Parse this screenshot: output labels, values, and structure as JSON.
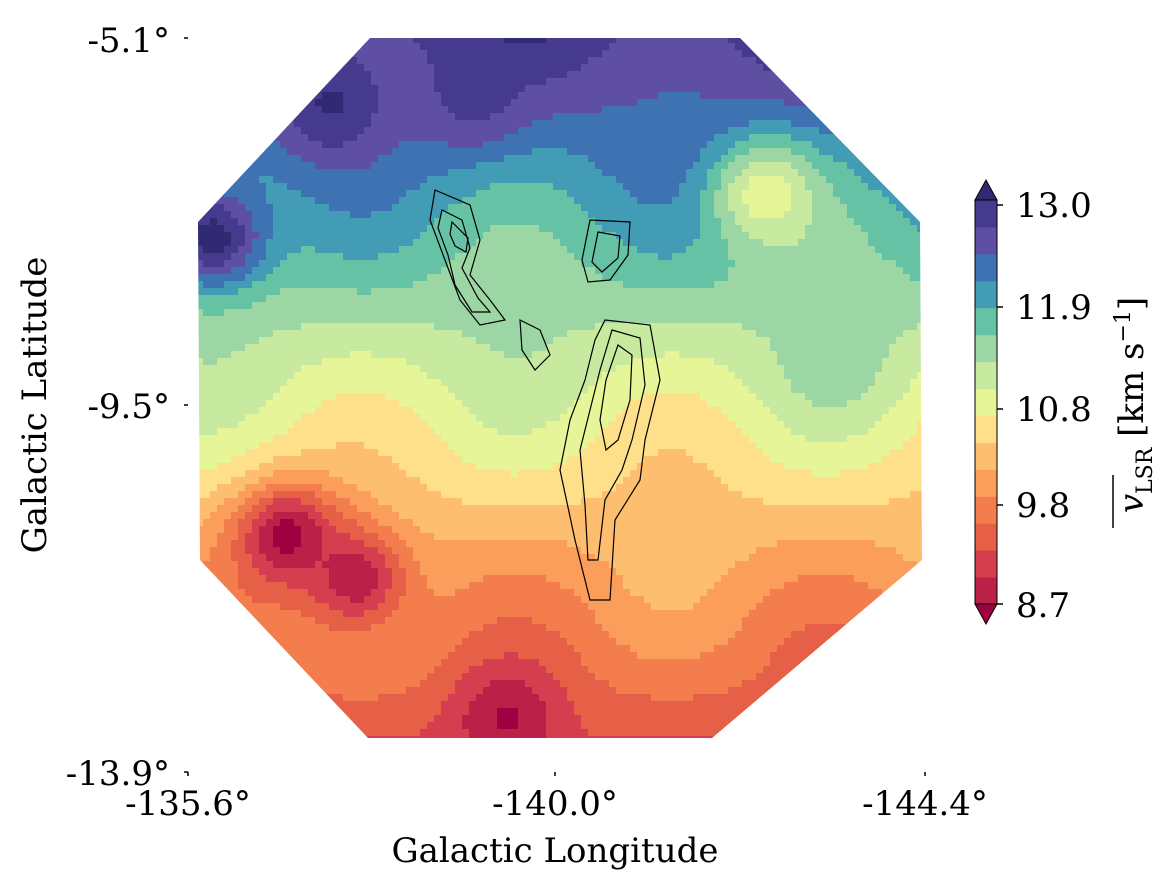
{
  "chart_data": {
    "type": "heatmap",
    "subtype": "filled-contour map with overlaid line contours",
    "xlabel": "Galactic Longitude",
    "ylabel": "Galactic Latitude",
    "x_ticks": [
      "-135.6°",
      "-140.0°",
      "-144.4°"
    ],
    "y_ticks": [
      "-5.1°",
      "-9.5°",
      "-13.9°"
    ],
    "x_range": [
      -135.6,
      -144.4
    ],
    "y_range": [
      -13.9,
      -5.1
    ],
    "colorbar": {
      "label_main": "v",
      "label_sub": "LSR",
      "label_unit": "[km s",
      "label_exp": "−1",
      "label_close": "]",
      "colormap": "Spectral",
      "range": [
        8.7,
        13.0
      ],
      "ticks": [
        "13.0",
        "11.9",
        "10.8",
        "9.8",
        "8.7"
      ],
      "levels": 16,
      "extend": "both",
      "colors": [
        "#9e0142",
        "#bb2049",
        "#d53e4f",
        "#e65f47",
        "#f47d4d",
        "#fb9e5c",
        "#fdbf6f",
        "#fee08b",
        "#e6f598",
        "#c7e9a0",
        "#9bd6a4",
        "#66c2a5",
        "#439cb5",
        "#3e72b2",
        "#5e4fa2",
        "#463a8e",
        "#2f2a72"
      ]
    },
    "velocity_field": {
      "description": "LSR velocity increases from south (about 8.7-9.8 km/s) to north (about 12-13 km/s)",
      "south_value": 9.3,
      "north_value": 12.7,
      "local_features": [
        {
          "l": -136.8,
          "b": -11.1,
          "v": 8.7,
          "note": "low-velocity knot"
        },
        {
          "l": -137.6,
          "b": -11.6,
          "v": 8.9
        },
        {
          "l": -139.4,
          "b": -13.3,
          "v": 8.8
        },
        {
          "l": -137.3,
          "b": -5.9,
          "v": 12.9,
          "note": "high-velocity knot"
        },
        {
          "l": -135.9,
          "b": -7.5,
          "v": 13.0
        },
        {
          "l": -139.0,
          "b": -5.8,
          "v": 12.7
        },
        {
          "l": -142.5,
          "b": -7.0,
          "v": 10.8,
          "note": "slow patch in north-east"
        },
        {
          "l": -143.3,
          "b": -9.0,
          "v": 11.4
        }
      ]
    },
    "overlay_contours": "black line contours of intensity, filamentary structure near l=-141",
    "footprint": "circular field of view centred at l=-140.0, b=-9.5"
  }
}
